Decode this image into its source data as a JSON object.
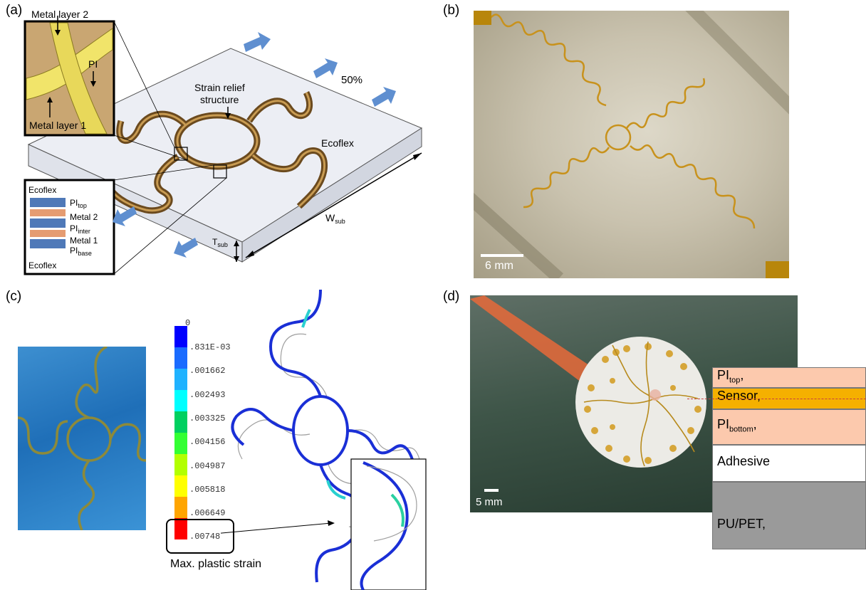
{
  "panels": {
    "a": {
      "letter": "(a)",
      "metal_layer_2": "Metal layer 2",
      "metal_layer_1": "Metal layer 1",
      "pi": "PI",
      "strain_relief_1": "Strain relief",
      "strain_relief_2": "structure",
      "percent": "50%",
      "ecoflex": "Ecoflex",
      "w_sub": {
        "main": "W",
        "sub": "sub"
      },
      "t_sub": {
        "main": "T",
        "sub": "sub"
      },
      "stack": {
        "ecoflex_top": "Ecoflex",
        "pi_top": {
          "main": "PI",
          "sub": "top"
        },
        "metal_2": "Metal 2",
        "pi_inter": {
          "main": "PI",
          "sub": "inter"
        },
        "metal_1": "Metal 1",
        "pi_base": {
          "main": "PI",
          "sub": "base"
        },
        "ecoflex_bottom": "Ecoflex"
      }
    },
    "b": {
      "letter": "(b)",
      "scale": "6 mm"
    },
    "c": {
      "letter": "(c)",
      "legend_values": [
        "0",
        ".831E-03",
        ".001662",
        ".002493",
        ".003325",
        ".004156",
        ".004987",
        ".005818",
        ".006649",
        ".00748"
      ],
      "legend_colors": [
        "#0000ff",
        "#1a6bff",
        "#1fb2ff",
        "#00ffff",
        "#00d060",
        "#33ff33",
        "#b3ff00",
        "#ffff00",
        "#ffa500",
        "#ff0000"
      ],
      "caption": "Max. plastic strain"
    },
    "d": {
      "letter": "(d)",
      "scale": "5 mm",
      "layers": {
        "pi_top": {
          "main": "PI",
          "sub": "top",
          "suffix": ","
        },
        "sensor": "Sensor,",
        "pi_bottom": {
          "main": "PI",
          "sub": "bottom",
          "suffix": ","
        },
        "adhesive": "Adhesive",
        "pu_pet": "PU/PET,"
      },
      "layer_colors": {
        "pi": "#fcc9ad",
        "sensor": "#f5b000",
        "adhesive": "#ffffff",
        "pu_pet": "#9a9a9a"
      }
    }
  }
}
